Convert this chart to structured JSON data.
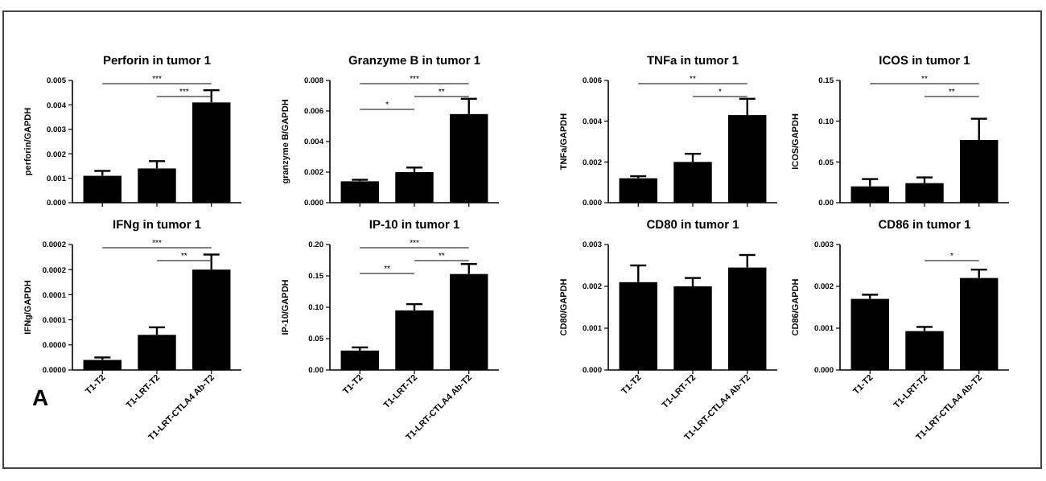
{
  "chart_data": [
    {
      "type": "bar",
      "title": "Perforin in tumor 1",
      "ylabel": "perforin/GAPDH",
      "categories": [
        null,
        null,
        null
      ],
      "values": [
        0.0011,
        0.0014,
        0.0041
      ],
      "errors": [
        0.0002,
        0.0003,
        0.0005
      ],
      "color": "#000000",
      "ylim": [
        0,
        0.005
      ],
      "yticks": [
        {
          "value": 0,
          "label": "0.000"
        },
        {
          "value": 0.001,
          "label": "0.001"
        },
        {
          "value": 0.002,
          "label": "0.002"
        },
        {
          "value": 0.003,
          "label": "0.003"
        },
        {
          "value": 0.004,
          "label": "0.004"
        },
        {
          "value": 0.005,
          "label": "0.005"
        }
      ],
      "annotations": [
        "***",
        "***"
      ]
    },
    {
      "type": "bar",
      "title": "Granzyme B in tumor 1",
      "ylabel": "granzyme B/GAPDH",
      "categories": [
        null,
        null,
        null
      ],
      "values": [
        0.0014,
        0.002,
        0.0058
      ],
      "errors": [
        0.0001,
        0.0003,
        0.001
      ],
      "color": "#000000",
      "ylim": [
        0,
        0.008
      ],
      "yticks": [
        {
          "value": 0,
          "label": "0.000"
        },
        {
          "value": 0.002,
          "label": "0.002"
        },
        {
          "value": 0.004,
          "label": "0.004"
        },
        {
          "value": 0.006,
          "label": "0.006"
        },
        {
          "value": 0.008,
          "label": "0.008"
        }
      ],
      "annotations": [
        "***",
        "*",
        "**"
      ]
    },
    {
      "type": "bar",
      "title": "TNFa in tumor 1",
      "ylabel": "TNFa/GAPDH",
      "categories": [
        null,
        null,
        null
      ],
      "values": [
        0.0012,
        0.002,
        0.0043
      ],
      "errors": [
        0.0001,
        0.0004,
        0.0008
      ],
      "color": "#000000",
      "ylim": [
        0,
        0.006
      ],
      "yticks": [
        {
          "value": 0,
          "label": "0.000"
        },
        {
          "value": 0.002,
          "label": "0.002"
        },
        {
          "value": 0.004,
          "label": "0.004"
        },
        {
          "value": 0.006,
          "label": "0.006"
        }
      ],
      "annotations": [
        "**",
        "*"
      ]
    },
    {
      "type": "bar",
      "title": "ICOS in tumor 1",
      "ylabel": "ICOS/GAPDH",
      "categories": [
        null,
        null,
        null
      ],
      "values": [
        0.02,
        0.024,
        0.077
      ],
      "errors": [
        0.009,
        0.007,
        0.026
      ],
      "color": "#000000",
      "ylim": [
        0,
        0.15
      ],
      "yticks": [
        {
          "value": 0,
          "label": "0.00"
        },
        {
          "value": 0.05,
          "label": "0.05"
        },
        {
          "value": 0.1,
          "label": "0.10"
        },
        {
          "value": 0.15,
          "label": "0.15"
        }
      ],
      "annotations": [
        "**",
        "**"
      ]
    },
    {
      "type": "bar",
      "title": "IFNg in tumor 1",
      "ylabel": "IFNg/GAPDH",
      "categories": [
        "T1-T2",
        "T1-LRT-T2",
        "T1-LRT-CTLA4 Ab-T2"
      ],
      "values": [
        2e-05,
        7e-05,
        0.0002
      ],
      "errors": [
        5e-06,
        1.5e-05,
        3e-05
      ],
      "color": "#000000",
      "ylim": [
        0,
        0.00025
      ],
      "yticks": [
        {
          "value": 0,
          "label": "0.0000"
        },
        {
          "value": 5e-05,
          "label": "0.0000"
        },
        {
          "value": 0.0001,
          "label": "0.0001"
        },
        {
          "value": 0.00015,
          "label": "0.0001"
        },
        {
          "value": 0.0002,
          "label": "0.0002"
        },
        {
          "value": 0.00025,
          "label": "0.0002"
        }
      ],
      "annotations": [
        "***",
        "**"
      ]
    },
    {
      "type": "bar",
      "title": "IP-10 in tumor 1",
      "ylabel": "IP-10/GAPDH",
      "categories": [
        "T1-T2",
        "T1-LRT-T2",
        "T1-LRT-CTLA4 Ab-T2"
      ],
      "values": [
        0.031,
        0.095,
        0.153
      ],
      "errors": [
        0.005,
        0.01,
        0.016
      ],
      "color": "#000000",
      "ylim": [
        0,
        0.2
      ],
      "yticks": [
        {
          "value": 0,
          "label": "0.00"
        },
        {
          "value": 0.05,
          "label": "0.05"
        },
        {
          "value": 0.1,
          "label": "0.10"
        },
        {
          "value": 0.15,
          "label": "0.15"
        },
        {
          "value": 0.2,
          "label": "0.20"
        }
      ],
      "annotations": [
        "***",
        "**",
        "**"
      ]
    },
    {
      "type": "bar",
      "title": "CD80 in tumor 1",
      "ylabel": "CD80/GAPDH",
      "categories": [
        "T1-T2",
        "T1-LRT-T2",
        "T1-LRT-CTLA4 Ab-T2"
      ],
      "values": [
        0.0021,
        0.002,
        0.00245
      ],
      "errors": [
        0.0004,
        0.0002,
        0.0003
      ],
      "color": "#000000",
      "ylim": [
        0,
        0.003
      ],
      "yticks": [
        {
          "value": 0,
          "label": "0.000"
        },
        {
          "value": 0.001,
          "label": "0.001"
        },
        {
          "value": 0.002,
          "label": "0.002"
        },
        {
          "value": 0.003,
          "label": "0.003"
        }
      ]
    },
    {
      "type": "bar",
      "title": "CD86 in tumor 1",
      "ylabel": "CD86/GAPDH",
      "categories": [
        "T1-T2",
        "T1-LRT-T2",
        "T1-LRT-CTLA4 Ab-T2"
      ],
      "values": [
        0.0017,
        0.00093,
        0.0022
      ],
      "errors": [
        0.0001,
        0.0001,
        0.0002
      ],
      "color": "#000000",
      "ylim": [
        0,
        0.003
      ],
      "yticks": [
        {
          "value": 0,
          "label": "0.000"
        },
        {
          "value": 0.001,
          "label": "0.001"
        },
        {
          "value": 0.002,
          "label": "0.002"
        },
        {
          "value": 0.003,
          "label": "0.003"
        }
      ],
      "annotations": [
        "*"
      ]
    },
    {
      "type": "other",
      "annotations": [
        "A"
      ]
    }
  ]
}
